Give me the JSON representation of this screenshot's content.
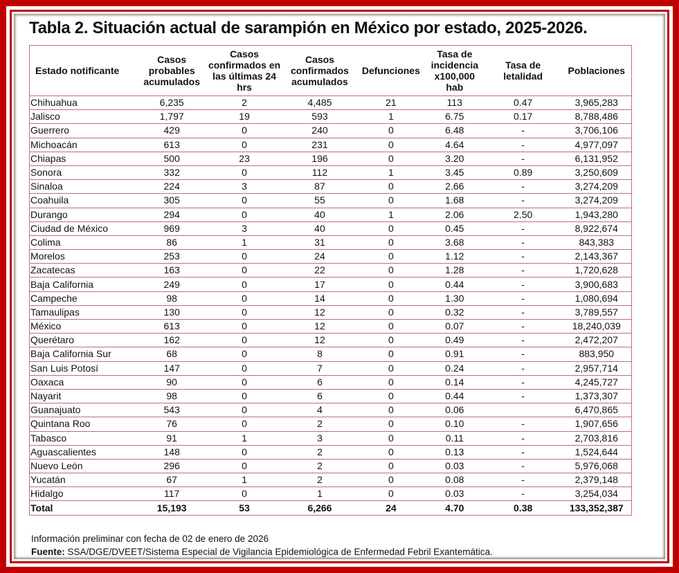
{
  "title": "Tabla 2. Situación actual de sarampión en México por estado, 2025-2026.",
  "colors": {
    "frame": "#c00000",
    "grid": "#c06b85"
  },
  "columns": [
    "Estado notificante",
    "Casos probables acumulados",
    "Casos confirmados en las últimas 24 hrs",
    "Casos confirmados acumulados",
    "Defunciones",
    "Tasa de incidencia x100,000 hab",
    "Tasa de letalidad",
    "Poblaciones"
  ],
  "rows": [
    [
      "Chihuahua",
      "6,235",
      "2",
      "4,485",
      "21",
      "113",
      "0.47",
      "3,965,283"
    ],
    [
      "Jalisco",
      "1,797",
      "19",
      "593",
      "1",
      "6.75",
      "0.17",
      "8,788,486"
    ],
    [
      "Guerrero",
      "429",
      "0",
      "240",
      "0",
      "6.48",
      "-",
      "3,706,106"
    ],
    [
      "Michoacán",
      "613",
      "0",
      "231",
      "0",
      "4.64",
      "-",
      "4,977,097"
    ],
    [
      "Chiapas",
      "500",
      "23",
      "196",
      "0",
      "3.20",
      "-",
      "6,131,952"
    ],
    [
      "Sonora",
      "332",
      "0",
      "112",
      "1",
      "3.45",
      "0.89",
      "3,250,609"
    ],
    [
      "Sinaloa",
      "224",
      "3",
      "87",
      "0",
      "2.66",
      "-",
      "3,274,209"
    ],
    [
      "Coahuila",
      "305",
      "0",
      "55",
      "0",
      "1.68",
      "-",
      "3,274,209"
    ],
    [
      "Durango",
      "294",
      "0",
      "40",
      "1",
      "2.06",
      "2.50",
      "1,943,280"
    ],
    [
      "Ciudad de México",
      "969",
      "3",
      "40",
      "0",
      "0.45",
      "-",
      "8,922,674"
    ],
    [
      "Colima",
      "86",
      "1",
      "31",
      "0",
      "3.68",
      "-",
      "843,383"
    ],
    [
      "Morelos",
      "253",
      "0",
      "24",
      "0",
      "1.12",
      "-",
      "2,143,367"
    ],
    [
      "Zacatecas",
      "163",
      "0",
      "22",
      "0",
      "1.28",
      "-",
      "1,720,628"
    ],
    [
      "Baja California",
      "249",
      "0",
      "17",
      "0",
      "0.44",
      "-",
      "3,900,683"
    ],
    [
      "Campeche",
      "98",
      "0",
      "14",
      "0",
      "1.30",
      "-",
      "1,080,694"
    ],
    [
      "Tamaulipas",
      "130",
      "0",
      "12",
      "0",
      "0.32",
      "-",
      "3,789,557"
    ],
    [
      "México",
      "613",
      "0",
      "12",
      "0",
      "0.07",
      "-",
      "18,240,039"
    ],
    [
      "Querétaro",
      "162",
      "0",
      "12",
      "0",
      "0.49",
      "-",
      "2,472,207"
    ],
    [
      "Baja California Sur",
      "68",
      "0",
      "8",
      "0",
      "0.91",
      "-",
      "883,950"
    ],
    [
      "San Luis Potosí",
      "147",
      "0",
      "7",
      "0",
      "0.24",
      "-",
      "2,957,714"
    ],
    [
      "Oaxaca",
      "90",
      "0",
      "6",
      "0",
      "0.14",
      "-",
      "4,245,727"
    ],
    [
      "Nayarit",
      "98",
      "0",
      "6",
      "0",
      "0.44",
      "-",
      "1,373,307"
    ],
    [
      "Guanajuato",
      "543",
      "0",
      "4",
      "0",
      "0.06",
      "",
      "6,470,865"
    ],
    [
      "Quintana Roo",
      "76",
      "0",
      "2",
      "0",
      "0.10",
      "-",
      "1,907,656"
    ],
    [
      "Tabasco",
      "91",
      "1",
      "3",
      "0",
      "0.11",
      "-",
      "2,703,816"
    ],
    [
      "Aguascalientes",
      "148",
      "0",
      "2",
      "0",
      "0.13",
      "-",
      "1,524,644"
    ],
    [
      "Nuevo León",
      "296",
      "0",
      "2",
      "0",
      "0.03",
      "-",
      "5,976,068"
    ],
    [
      "Yucatán",
      "67",
      "1",
      "2",
      "0",
      "0.08",
      "-",
      "2,379,148"
    ],
    [
      "Hidalgo",
      "117",
      "0",
      "1",
      "0",
      "0.03",
      "-",
      "3,254,034"
    ]
  ],
  "total": [
    "Total",
    "15,193",
    "53",
    "6,266",
    "24",
    "4.70",
    "0.38",
    "133,352,387"
  ],
  "notes": {
    "preliminary": "Información preliminar con fecha de 02 de enero de 2026",
    "source_label": "Fuente:",
    "source_text": " SSA/DGE/DVEET/Sistema Especial de Vigilancia Epidemiológica de Enfermedad Febril Exantemática."
  }
}
